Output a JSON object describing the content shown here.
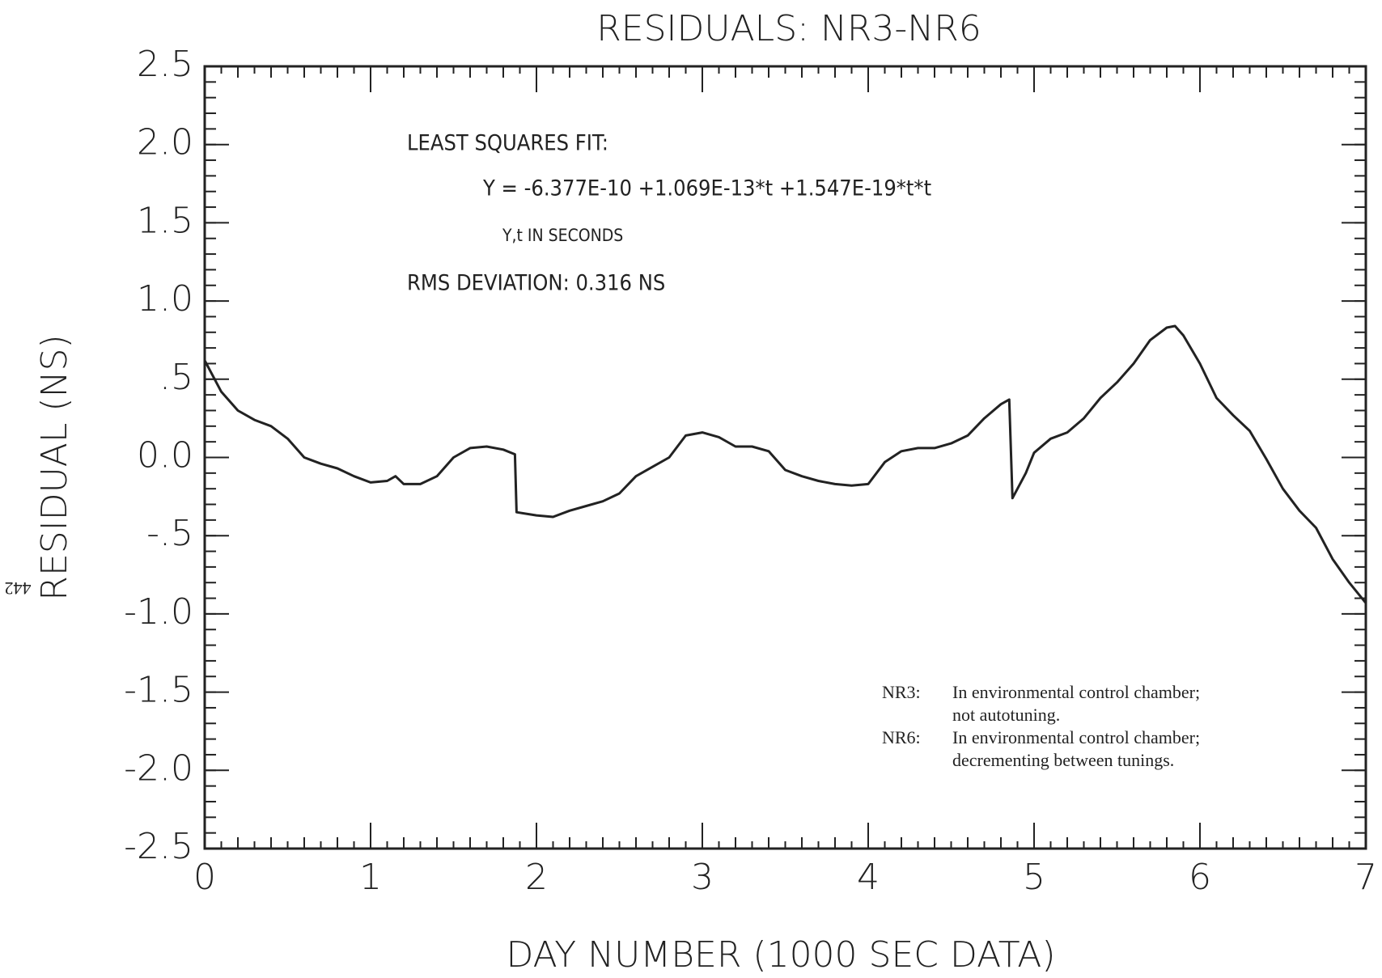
{
  "chart_data": {
    "type": "line",
    "title": "RESIDUALS:  NR3-NR6",
    "xlabel": "DAY NUMBER  (1000 SEC DATA)",
    "ylabel": "RESIDUAL  (NS)",
    "page_number": "442",
    "annotations": [
      "LEAST SQUARES FIT:",
      "Y = -6.377E-10 +1.069E-13*t +1.547E-19*t*t",
      "Y,t IN SECONDS",
      "RMS DEVIATION:  0.316 NS"
    ],
    "notes": [
      {
        "label": "NR3:",
        "lines": [
          "In environmental control chamber;",
          "not autotuning."
        ]
      },
      {
        "label": "NR6:",
        "lines": [
          "In environmental control chamber;",
          "decrementing between tunings."
        ]
      }
    ],
    "xlim": [
      0,
      7
    ],
    "xticks": [
      0,
      1,
      2,
      3,
      4,
      5,
      6,
      7
    ],
    "ylim": [
      -2.5,
      2.5
    ],
    "yticks": [
      2.5,
      {
        "value": 2,
        "label": "2.0"
      },
      1.5,
      {
        "value": 1,
        "label": "1.0"
      },
      {
        "value": 0.5,
        "label": ".5"
      },
      {
        "value": 0,
        "label": "0.0"
      },
      {
        "value": -0.5,
        "label": "-.5"
      },
      {
        "value": -1,
        "label": "-1.0"
      },
      -1.5,
      {
        "value": -2,
        "label": "-2.0"
      },
      -2.5
    ],
    "grid": false,
    "x": [
      0,
      0.1,
      0.2,
      0.3,
      0.4,
      0.5,
      0.6,
      0.7,
      0.8,
      0.9,
      1.0,
      1.1,
      1.15,
      1.2,
      1.3,
      1.4,
      1.5,
      1.6,
      1.7,
      1.8,
      1.87,
      1.88,
      2.0,
      2.1,
      2.2,
      2.3,
      2.4,
      2.5,
      2.6,
      2.7,
      2.8,
      2.9,
      3.0,
      3.1,
      3.2,
      3.3,
      3.4,
      3.5,
      3.6,
      3.7,
      3.8,
      3.9,
      4.0,
      4.1,
      4.2,
      4.3,
      4.4,
      4.5,
      4.6,
      4.7,
      4.8,
      4.85,
      4.87,
      4.95,
      5.0,
      5.1,
      5.2,
      5.3,
      5.4,
      5.5,
      5.6,
      5.7,
      5.8,
      5.85,
      5.9,
      6.0,
      6.1,
      6.2,
      6.3,
      6.4,
      6.5,
      6.6,
      6.7,
      6.8,
      6.9,
      7.0
    ],
    "series": [
      {
        "color": "#222222",
        "values": [
          0.62,
          0.42,
          0.3,
          0.24,
          0.2,
          0.12,
          0.0,
          -0.04,
          -0.07,
          -0.12,
          -0.16,
          -0.15,
          -0.12,
          -0.17,
          -0.17,
          -0.12,
          0.0,
          0.06,
          0.07,
          0.05,
          0.02,
          -0.35,
          -0.37,
          -0.38,
          -0.34,
          -0.31,
          -0.28,
          -0.23,
          -0.12,
          -0.06,
          0.0,
          0.14,
          0.16,
          0.13,
          0.07,
          0.07,
          0.04,
          -0.08,
          -0.12,
          -0.15,
          -0.17,
          -0.18,
          -0.17,
          -0.03,
          0.04,
          0.06,
          0.06,
          0.09,
          0.14,
          0.25,
          0.34,
          0.37,
          -0.26,
          -0.1,
          0.03,
          0.12,
          0.16,
          0.25,
          0.38,
          0.48,
          0.6,
          0.75,
          0.83,
          0.84,
          0.78,
          0.6,
          0.38,
          0.27,
          0.17,
          -0.01,
          -0.2,
          -0.34,
          -0.45,
          -0.65,
          -0.8,
          -0.93
        ]
      }
    ]
  }
}
